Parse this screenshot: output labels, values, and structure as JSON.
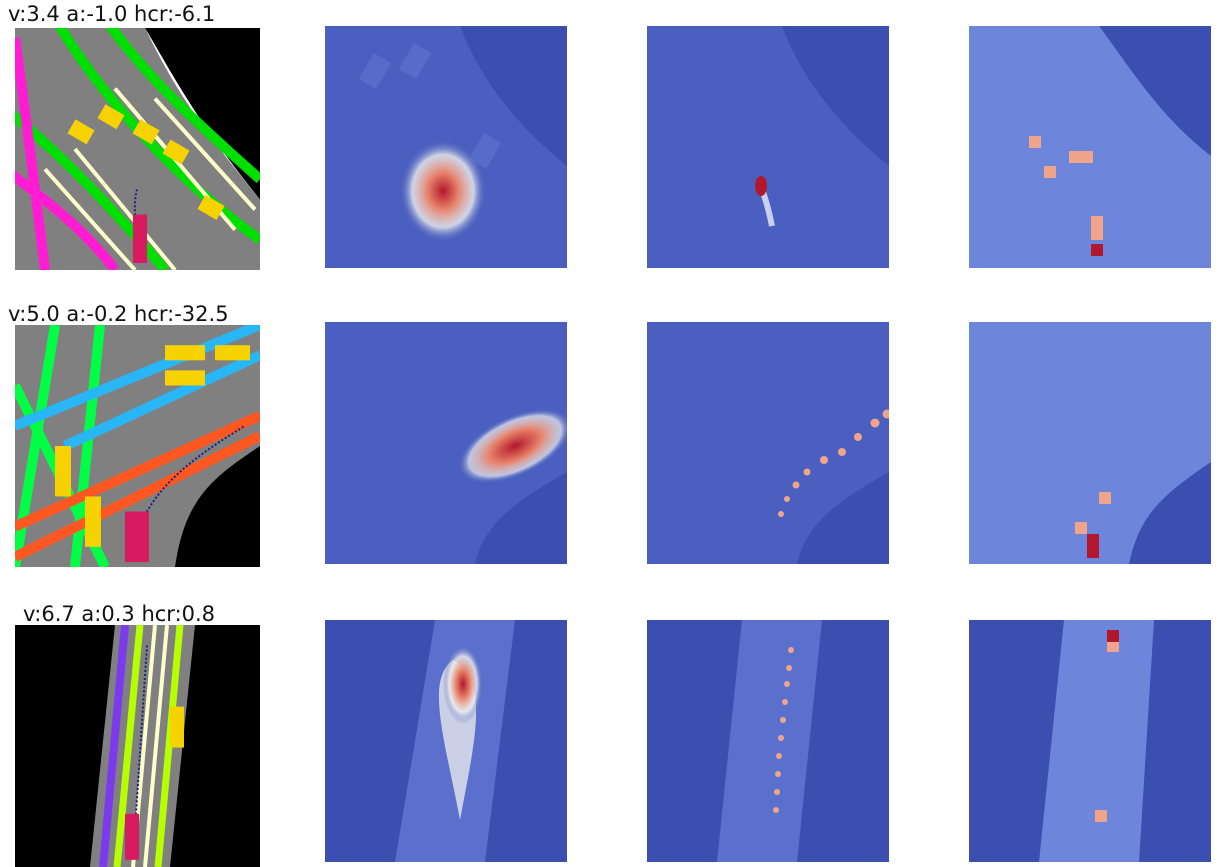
{
  "rows": [
    {
      "caption": "v:3.4 a:-1.0 hcr:-6.1"
    },
    {
      "caption": "v:5.0 a:-0.2 hcr:-32.5"
    },
    {
      "caption": "v:6.7 a:0.3 hcr:0.8"
    }
  ],
  "colors": {
    "background_field": "#3b4fb0",
    "heat_hot": "#b2182b",
    "road_gray": "#808080",
    "lane_yellow": "#f5d200",
    "ego_vehicle": "#d81b60"
  }
}
